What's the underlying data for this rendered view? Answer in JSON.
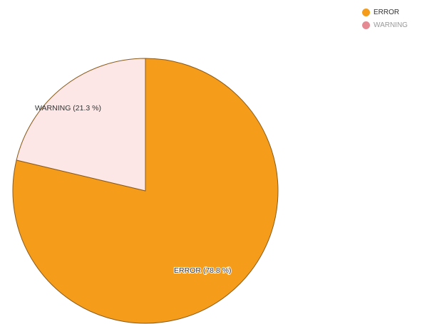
{
  "chart_data": {
    "type": "pie",
    "series": [
      {
        "name": "ERROR",
        "value": 78.8,
        "label": "ERROR (78.8 %)",
        "color": "#f59c1a",
        "legend_text_color": "#333333"
      },
      {
        "name": "WARNING",
        "value": 21.3,
        "label": "WARNING (21.3 %)",
        "color": "#fde6e6",
        "legend_dot_color": "#e58a93",
        "legend_text_color": "#9a9a9a"
      }
    ],
    "legend_position": "top-right",
    "title": ""
  },
  "legend": {
    "items": [
      {
        "label": "ERROR"
      },
      {
        "label": "WARNING"
      }
    ]
  }
}
